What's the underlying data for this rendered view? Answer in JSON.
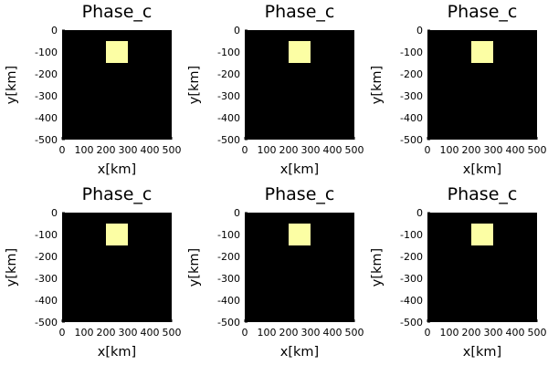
{
  "chart_data": [
    {
      "type": "heatmap",
      "title": "Phase_c",
      "xlabel": "x[km]",
      "ylabel": "y[km]",
      "xlim": [
        0,
        500
      ],
      "ylim": [
        -500,
        0
      ],
      "xticks": [
        0,
        100,
        200,
        300,
        400,
        500
      ],
      "yticks": [
        0,
        -100,
        -200,
        -300,
        -400,
        -500
      ],
      "background_color": "#000000",
      "regions": [
        {
          "x": [
            200,
            300
          ],
          "y": [
            -150,
            -50
          ],
          "color": "#fcfea4"
        }
      ],
      "grid": false,
      "legend": "none"
    },
    {
      "type": "heatmap",
      "title": "Phase_c",
      "xlabel": "x[km]",
      "ylabel": "y[km]",
      "xlim": [
        0,
        500
      ],
      "ylim": [
        -500,
        0
      ],
      "xticks": [
        0,
        100,
        200,
        300,
        400,
        500
      ],
      "yticks": [
        0,
        -100,
        -200,
        -300,
        -400,
        -500
      ],
      "background_color": "#000000",
      "regions": [
        {
          "x": [
            200,
            300
          ],
          "y": [
            -150,
            -50
          ],
          "color": "#fcfea4"
        }
      ],
      "grid": false,
      "legend": "none"
    },
    {
      "type": "heatmap",
      "title": "Phase_c",
      "xlabel": "x[km]",
      "ylabel": "y[km]",
      "xlim": [
        0,
        500
      ],
      "ylim": [
        -500,
        0
      ],
      "xticks": [
        0,
        100,
        200,
        300,
        400,
        500
      ],
      "yticks": [
        0,
        -100,
        -200,
        -300,
        -400,
        -500
      ],
      "background_color": "#000000",
      "regions": [
        {
          "x": [
            200,
            300
          ],
          "y": [
            -150,
            -50
          ],
          "color": "#fcfea4"
        }
      ],
      "grid": false,
      "legend": "none"
    },
    {
      "type": "heatmap",
      "title": "Phase_c",
      "xlabel": "x[km]",
      "ylabel": "y[km]",
      "xlim": [
        0,
        500
      ],
      "ylim": [
        -500,
        0
      ],
      "xticks": [
        0,
        100,
        200,
        300,
        400,
        500
      ],
      "yticks": [
        0,
        -100,
        -200,
        -300,
        -400,
        -500
      ],
      "background_color": "#000000",
      "regions": [
        {
          "x": [
            200,
            300
          ],
          "y": [
            -150,
            -50
          ],
          "color": "#fcfea4"
        }
      ],
      "grid": false,
      "legend": "none"
    },
    {
      "type": "heatmap",
      "title": "Phase_c",
      "xlabel": "x[km]",
      "ylabel": "y[km]",
      "xlim": [
        0,
        500
      ],
      "ylim": [
        -500,
        0
      ],
      "xticks": [
        0,
        100,
        200,
        300,
        400,
        500
      ],
      "yticks": [
        0,
        -100,
        -200,
        -300,
        -400,
        -500
      ],
      "background_color": "#000000",
      "regions": [
        {
          "x": [
            200,
            300
          ],
          "y": [
            -150,
            -50
          ],
          "color": "#fcfea4"
        }
      ],
      "grid": false,
      "legend": "none"
    },
    {
      "type": "heatmap",
      "title": "Phase_c",
      "xlabel": "x[km]",
      "ylabel": "y[km]",
      "xlim": [
        0,
        500
      ],
      "ylim": [
        -500,
        0
      ],
      "xticks": [
        0,
        100,
        200,
        300,
        400,
        500
      ],
      "yticks": [
        0,
        -100,
        -200,
        -300,
        -400,
        -500
      ],
      "background_color": "#000000",
      "regions": [
        {
          "x": [
            200,
            300
          ],
          "y": [
            -150,
            -50
          ],
          "color": "#fcfea4"
        }
      ],
      "grid": false,
      "legend": "none"
    }
  ]
}
